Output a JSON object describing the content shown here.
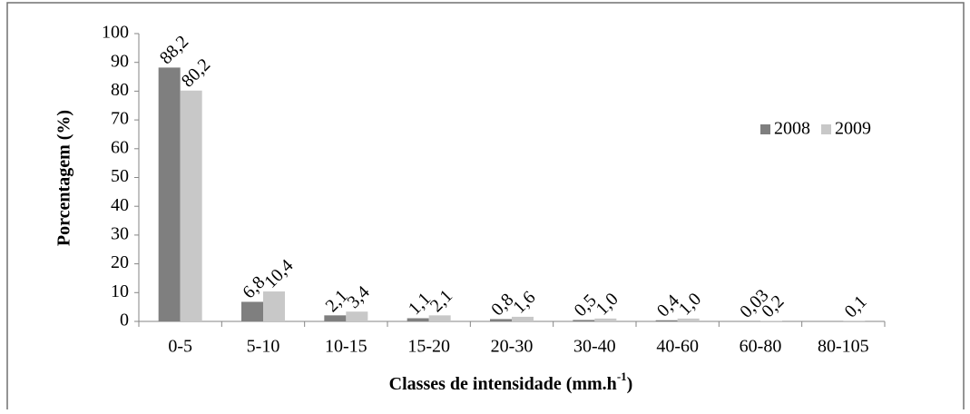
{
  "chart_data": {
    "type": "bar",
    "x_label": {
      "text": "Classes de intensidade (mm.h",
      "superscript": "-1",
      "end": ")"
    },
    "y_label": "Porcentagem (%)",
    "categories": [
      "0-5",
      "5-10",
      "10-15",
      "15-20",
      "20-30",
      "30-40",
      "40-60",
      "60-80",
      "80-105"
    ],
    "series": [
      {
        "name": "2008",
        "color": "#7f7f7f",
        "values": [
          88.2,
          6.8,
          2.1,
          1.1,
          0.8,
          0.5,
          0.4,
          0.03,
          null
        ],
        "value_labels": [
          "88,2",
          "6,8",
          "2,1",
          "1,1",
          "0,8",
          "0,5",
          "0,4",
          "0,03",
          null
        ]
      },
      {
        "name": "2009",
        "color": "#c8c8c8",
        "values": [
          80.2,
          10.4,
          3.4,
          2.1,
          1.6,
          1.0,
          1.0,
          0.2,
          0.1
        ],
        "value_labels": [
          "80,2",
          "10,4",
          "3,4",
          "2,1",
          "1,6",
          "1,0",
          "1,0",
          "0,2",
          "0,1"
        ]
      }
    ],
    "ylim": [
      0,
      100
    ],
    "yticks": [
      0,
      10,
      20,
      30,
      40,
      50,
      60,
      70,
      80,
      90,
      100
    ],
    "grid": false,
    "legend": "right"
  }
}
